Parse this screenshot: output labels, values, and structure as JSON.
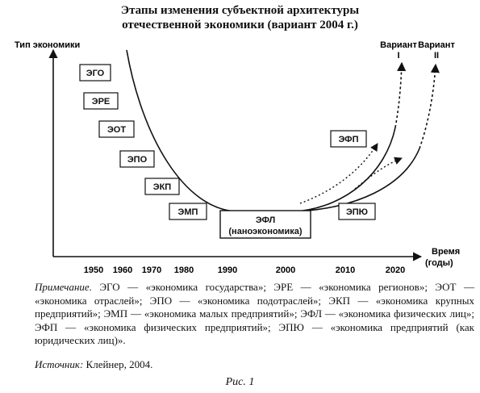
{
  "title": {
    "line1": "Этапы изменения субъектной архитектуры",
    "line2": "отечественной экономики (вариант 2004 г.)"
  },
  "axes": {
    "y_label": "Тип экономики",
    "x_label_line1": "Время",
    "x_label_line2": "(годы)",
    "x_ticks": [
      "1950",
      "1960",
      "1970",
      "1980",
      "1990",
      "2000",
      "2010",
      "2020"
    ]
  },
  "boxes": {
    "ego": "ЭГО",
    "ere": "ЭРЕ",
    "eot": "ЭОТ",
    "epo": "ЭПО",
    "ekp": "ЭКП",
    "emp": "ЭМП",
    "efl_line1": "ЭФЛ",
    "efl_line2": "(наноэкономика)",
    "efp": "ЭФП",
    "epyu": "ЭПЮ"
  },
  "variants": {
    "v1_name": "Вариант",
    "v1_num": "I",
    "v2_name": "Вариант",
    "v2_num": "II"
  },
  "note": {
    "label": "Примечание.",
    "text": "ЭГО — «экономика государства»; ЭРЕ — «экономика регионов»; ЭОТ — «экономика отраслей»; ЭПО — «экономика подотраслей»; ЭКП — «экономика крупных предприятий»; ЭМП — «экономика малых предприятий»; ЭФЛ — «экономика физических лиц»; ЭФП — «экономика физических предприятий»; ЭПЮ — «экономика предприятий (как юридических лиц)»."
  },
  "source": {
    "label": "Источник:",
    "text": "Клейнер, 2004."
  },
  "figure_caption": "Рис. 1"
}
